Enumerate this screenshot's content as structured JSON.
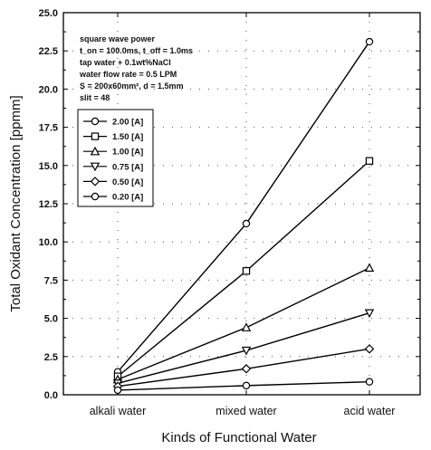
{
  "chart_data": {
    "type": "line",
    "xlabel": "Kinds of Functional Water",
    "ylabel": "Total Oxidant Concentration [ppmm]",
    "categories": [
      "alkali water",
      "mixed water",
      "acid water"
    ],
    "ylim": [
      0,
      25
    ],
    "yticks": [
      "0.0",
      "2.5",
      "5.0",
      "7.5",
      "10.0",
      "12.5",
      "15.0",
      "17.5",
      "20.0",
      "22.5",
      "25.0"
    ],
    "grid": "dotted",
    "legend_position": "upper-left",
    "annotation": {
      "line1": "square wave power",
      "line2": "t_on = 100.0ms, t_off = 1.0ms",
      "line3": "tap water + 0.1wt%NaCl",
      "line4": "water flow rate = 0.5 LPM",
      "line5": "S = 200x60mm², d = 1.5mm",
      "line6": "slit = 48"
    },
    "series": [
      {
        "name": "2.00 [A]",
        "marker": "circle",
        "values": [
          1.5,
          11.2,
          23.1
        ]
      },
      {
        "name": "1.50 [A]",
        "marker": "square",
        "values": [
          1.2,
          8.1,
          15.3
        ]
      },
      {
        "name": "1.00 [A]",
        "marker": "triangle-up",
        "values": [
          1.0,
          4.4,
          8.3
        ]
      },
      {
        "name": "0.75 [A]",
        "marker": "triangle-down",
        "values": [
          0.75,
          2.9,
          5.35
        ]
      },
      {
        "name": "0.50 [A]",
        "marker": "diamond",
        "values": [
          0.55,
          1.7,
          3.0
        ]
      },
      {
        "name": "0.20 [A]",
        "marker": "circle",
        "values": [
          0.3,
          0.6,
          0.85
        ]
      }
    ]
  }
}
